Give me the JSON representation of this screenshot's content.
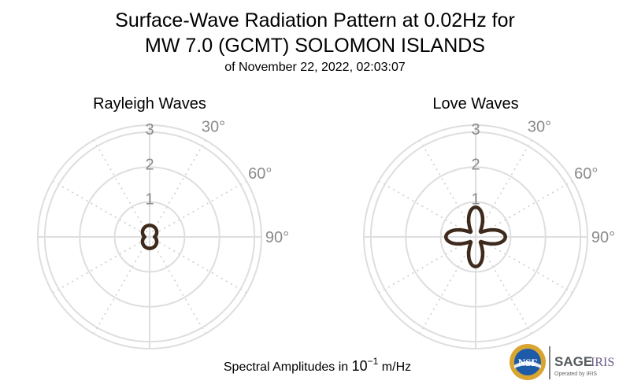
{
  "chart_data": {
    "type": "polar-line",
    "title_line1": "Surface-Wave Radiation Pattern at 0.02Hz for",
    "title_line2": "MW 7.0 (GCMT) SOLOMON ISLANDS",
    "subtitle": "of November 22, 2022, 02:03:07",
    "footer": {
      "prefix": "Spectral Amplitudes in ",
      "base": "10",
      "exponent": "−1",
      "unit": " m/Hz"
    },
    "radial_ticks": [
      1,
      2,
      3
    ],
    "radial_tick_labels": [
      "1",
      "2",
      "3"
    ],
    "rmax": 3.2,
    "angle_ticks": [
      30,
      60,
      90
    ],
    "angle_tick_labels": [
      "30°",
      "60°",
      "90°"
    ],
    "panels": [
      {
        "title": "Rayleigh Waves",
        "shape": "rayleigh",
        "amplitude": {
          "a": 0.14,
          "b": 0.19
        },
        "color": "#3e2a1c"
      },
      {
        "title": "Love Waves",
        "shape": "love",
        "amplitude": {
          "a": 0.2,
          "b": 0.65
        },
        "color": "#3e2a1c"
      }
    ]
  },
  "logo": {
    "nsf": "NSF",
    "sage": "SAGE",
    "iris": "IRIS",
    "operated": "Operated by IRIS"
  },
  "colors": {
    "grid": "#dedede",
    "axis_text": "#8a8a8a",
    "pattern": "#3e2a1c"
  }
}
